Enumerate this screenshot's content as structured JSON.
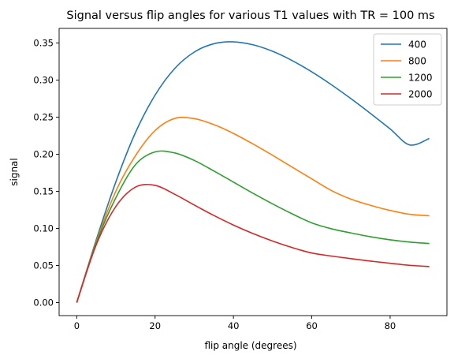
{
  "chart_data": {
    "type": "line",
    "title": "Signal versus flip angles for various T1 values with TR = 100 ms",
    "xlabel": "flip angle (degrees)",
    "ylabel": "signal",
    "xlim": [
      -4.5,
      94.5
    ],
    "ylim": [
      -0.0176,
      0.3696
    ],
    "x_ticks": [
      0,
      20,
      40,
      60,
      80
    ],
    "x_tick_labels": [
      "0",
      "20",
      "40",
      "60",
      "80"
    ],
    "y_ticks": [
      0.0,
      0.05,
      0.1,
      0.15,
      0.2,
      0.25,
      0.3,
      0.35
    ],
    "y_tick_labels": [
      "0.00",
      "0.05",
      "0.10",
      "0.15",
      "0.20",
      "0.25",
      "0.30",
      "0.35"
    ],
    "grid": false,
    "legend_position": "top-right",
    "x": [
      0,
      5,
      10,
      15,
      20,
      25,
      30,
      35,
      40,
      45,
      50,
      55,
      60,
      65,
      70,
      75,
      80,
      85,
      90
    ],
    "series": [
      {
        "name": "400",
        "color": "#1f77b4",
        "values": [
          0.0,
          0.0849,
          0.1629,
          0.2293,
          0.2797,
          0.3155,
          0.3377,
          0.3489,
          0.3515,
          0.3475,
          0.3387,
          0.3262,
          0.311,
          0.2937,
          0.2749,
          0.2549,
          0.2341,
          0.2125,
          0.2212
        ]
      },
      {
        "name": "800",
        "color": "#ff7f0e",
        "values": [
          0.0,
          0.0822,
          0.1504,
          0.1981,
          0.2319,
          0.2482,
          0.248,
          0.2399,
          0.228,
          0.2138,
          0.1985,
          0.1826,
          0.1667,
          0.1511,
          0.1394,
          0.1311,
          0.1242,
          0.119,
          0.117
        ]
      },
      {
        "name": "1200",
        "color": "#2ca02c",
        "values": [
          0.0,
          0.0806,
          0.1415,
          0.186,
          0.2031,
          0.2017,
          0.1916,
          0.1774,
          0.1624,
          0.1473,
          0.133,
          0.1196,
          0.1074,
          0.0995,
          0.0938,
          0.0887,
          0.0846,
          0.0815,
          0.0796
        ]
      },
      {
        "name": "2000",
        "color": "#d62728",
        "values": [
          0.0,
          0.0782,
          0.1297,
          0.1557,
          0.158,
          0.146,
          0.1315,
          0.1174,
          0.1045,
          0.093,
          0.0829,
          0.0741,
          0.0668,
          0.0627,
          0.0592,
          0.0559,
          0.0529,
          0.0502,
          0.0486
        ]
      }
    ]
  }
}
